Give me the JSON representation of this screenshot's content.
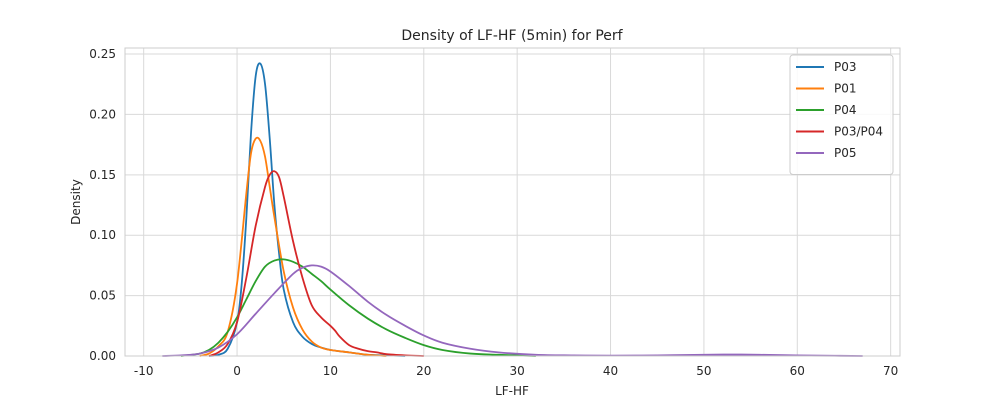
{
  "chart_data": {
    "type": "line",
    "title": "Density of LF-HF (5min) for Perf",
    "xlabel": "LF-HF",
    "ylabel": "Density",
    "xlim": [
      -12,
      71
    ],
    "ylim": [
      0,
      0.255
    ],
    "xticks": [
      -10,
      0,
      10,
      20,
      30,
      40,
      50,
      60,
      70
    ],
    "yticks": [
      0.0,
      0.05,
      0.1,
      0.15,
      0.2,
      0.25
    ],
    "xtick_labels": [
      "-10",
      "0",
      "10",
      "20",
      "30",
      "40",
      "50",
      "60",
      "70"
    ],
    "ytick_labels": [
      "0.00",
      "0.05",
      "0.10",
      "0.15",
      "0.20",
      "0.25"
    ],
    "grid": true,
    "legend_position": "top-right",
    "series": [
      {
        "name": "P03",
        "color": "#1f77b4",
        "x": [
          -3,
          -2,
          -1,
          0,
          0.5,
          1,
          1.5,
          2,
          2.5,
          3,
          3.5,
          4,
          4.5,
          5,
          6,
          7,
          8,
          9,
          10,
          12,
          14,
          16,
          18
        ],
        "y": [
          0,
          0.001,
          0.006,
          0.028,
          0.06,
          0.115,
          0.185,
          0.232,
          0.242,
          0.225,
          0.18,
          0.125,
          0.085,
          0.055,
          0.028,
          0.016,
          0.01,
          0.007,
          0.005,
          0.003,
          0.001,
          0.0005,
          0
        ]
      },
      {
        "name": "P01",
        "color": "#ff7f0e",
        "x": [
          -4,
          -3,
          -2,
          -1,
          0,
          1,
          1.5,
          2,
          2.5,
          3,
          3.5,
          4,
          5,
          6,
          7,
          8,
          9,
          10,
          12,
          14,
          16
        ],
        "y": [
          0,
          0.002,
          0.008,
          0.02,
          0.06,
          0.135,
          0.168,
          0.18,
          0.178,
          0.165,
          0.14,
          0.115,
          0.07,
          0.04,
          0.022,
          0.012,
          0.007,
          0.005,
          0.003,
          0.001,
          0
        ]
      },
      {
        "name": "P04",
        "color": "#2ca02c",
        "x": [
          -6,
          -4,
          -3,
          -2,
          -1,
          0,
          1,
          2,
          3,
          4,
          5,
          6,
          7,
          8,
          9,
          10,
          12,
          14,
          16,
          18,
          20,
          22,
          25,
          28,
          32
        ],
        "y": [
          0,
          0.002,
          0.005,
          0.011,
          0.02,
          0.032,
          0.047,
          0.062,
          0.074,
          0.079,
          0.08,
          0.078,
          0.074,
          0.068,
          0.062,
          0.055,
          0.042,
          0.031,
          0.022,
          0.015,
          0.009,
          0.005,
          0.002,
          0.001,
          0
        ]
      },
      {
        "name": "P03/P04",
        "color": "#d62728",
        "x": [
          -3,
          -2,
          -1,
          0,
          1,
          2,
          3,
          3.5,
          4,
          4.5,
          5,
          6,
          7,
          8,
          9,
          10,
          10.5,
          11,
          12,
          13,
          14,
          15,
          16,
          18,
          20
        ],
        "y": [
          0,
          0.003,
          0.01,
          0.028,
          0.065,
          0.108,
          0.14,
          0.15,
          0.153,
          0.148,
          0.132,
          0.095,
          0.065,
          0.042,
          0.032,
          0.025,
          0.021,
          0.016,
          0.009,
          0.006,
          0.004,
          0.003,
          0.0015,
          0.0005,
          0
        ]
      },
      {
        "name": "P05",
        "color": "#9467bd",
        "x": [
          -8,
          -6,
          -4,
          -2,
          0,
          2,
          4,
          6,
          7,
          8,
          9,
          10,
          12,
          14,
          16,
          18,
          20,
          22,
          25,
          28,
          32,
          36,
          40,
          45,
          50,
          53,
          56,
          60,
          64,
          67
        ],
        "y": [
          0,
          0.0005,
          0.002,
          0.007,
          0.018,
          0.035,
          0.052,
          0.068,
          0.073,
          0.075,
          0.074,
          0.07,
          0.058,
          0.045,
          0.034,
          0.025,
          0.017,
          0.011,
          0.006,
          0.003,
          0.001,
          0.0005,
          0.0003,
          0.0005,
          0.001,
          0.0012,
          0.001,
          0.0005,
          0.0002,
          0
        ]
      }
    ]
  }
}
